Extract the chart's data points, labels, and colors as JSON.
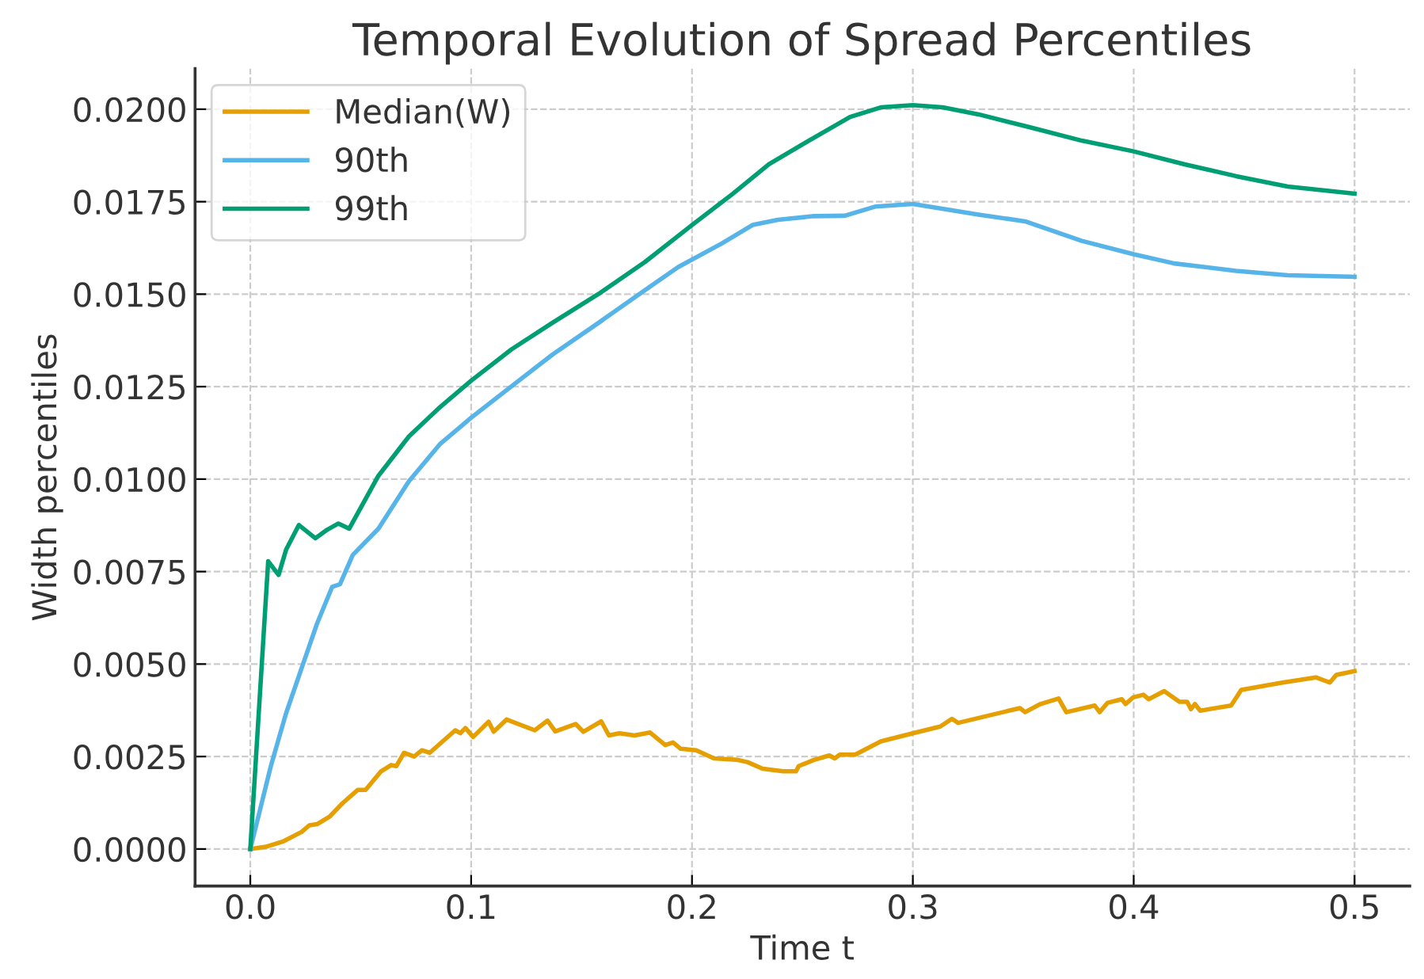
{
  "chart_data": {
    "type": "line",
    "title": "Temporal Evolution of Spread Percentiles",
    "xlabel": "Time t",
    "ylabel": "Width percentiles",
    "xlim": [
      -0.025,
      0.525
    ],
    "xticks": [
      {
        "value": 0,
        "label": "0.0"
      },
      0.1,
      0.2,
      0.3,
      0.4,
      0.5
    ],
    "ylim": [
      -0.001,
      0.0211
    ],
    "yticks": [
      {
        "value": 0,
        "label": "0.0000"
      },
      {
        "value": 0.0025,
        "label": "0.0025"
      },
      {
        "value": 0.005,
        "label": "0.0050"
      },
      {
        "value": 0.0075,
        "label": "0.0075"
      },
      {
        "value": 0.01,
        "label": "0.0100"
      },
      {
        "value": 0.0125,
        "label": "0.0125"
      },
      {
        "value": 0.015,
        "label": "0.0150"
      },
      {
        "value": 0.0175,
        "label": "0.0175"
      },
      {
        "value": 0.02,
        "label": "0.0200"
      }
    ],
    "grid": true,
    "legend": "top left",
    "marker": "none",
    "line_style": "solid",
    "series": [
      {
        "name": "Median(W)",
        "color": "#e69f00",
        "x": [
          0,
          0.007,
          0.0151,
          0.0232,
          0.0267,
          0.0302,
          0.036,
          0.0418,
          0.0487,
          0.0522,
          0.0592,
          0.0638,
          0.0661,
          0.0696,
          0.0742,
          0.0777,
          0.0812,
          0.0928,
          0.0951,
          0.0974,
          0.1009,
          0.1079,
          0.1102,
          0.116,
          0.1288,
          0.1346,
          0.1381,
          0.1473,
          0.1508,
          0.1589,
          0.1624,
          0.1671,
          0.174,
          0.181,
          0.1879,
          0.1914,
          0.1949,
          0.2019,
          0.21,
          0.2204,
          0.2251,
          0.232,
          0.2413,
          0.2471,
          0.2483,
          0.2552,
          0.2622,
          0.2646,
          0.2669,
          0.2739,
          0.2855,
          0.3,
          0.3124,
          0.3177,
          0.3205,
          0.3485,
          0.3508,
          0.3578,
          0.366,
          0.3695,
          0.3823,
          0.3846,
          0.3881,
          0.3946,
          0.3963,
          0.3998,
          0.4044,
          0.4068,
          0.4138,
          0.4207,
          0.4242,
          0.4259,
          0.4277,
          0.4301,
          0.4441,
          0.4487,
          0.4674,
          0.4825,
          0.4888,
          0.4918,
          0.5
        ],
        "values": [
          0,
          6e-05,
          0.00021,
          0.00046,
          0.00064,
          0.00067,
          0.00088,
          0.00124,
          0.0016,
          0.0016,
          0.0021,
          0.00227,
          0.00224,
          0.0026,
          0.0025,
          0.00267,
          0.0026,
          0.00321,
          0.00313,
          0.00327,
          0.00303,
          0.00344,
          0.00317,
          0.0035,
          0.00321,
          0.00347,
          0.00318,
          0.00338,
          0.00317,
          0.00345,
          0.00307,
          0.00313,
          0.00307,
          0.00315,
          0.00281,
          0.00288,
          0.00271,
          0.00267,
          0.00245,
          0.00241,
          0.00235,
          0.00217,
          0.0021,
          0.0021,
          0.00224,
          0.00241,
          0.00253,
          0.00245,
          0.00255,
          0.00255,
          0.00291,
          0.00313,
          0.00331,
          0.00352,
          0.00341,
          0.00381,
          0.0037,
          0.00392,
          0.00407,
          0.0037,
          0.00388,
          0.0037,
          0.00395,
          0.00405,
          0.00392,
          0.0041,
          0.00417,
          0.00405,
          0.00427,
          0.00398,
          0.00398,
          0.00378,
          0.00392,
          0.00374,
          0.00388,
          0.0043,
          0.0045,
          0.00464,
          0.0045,
          0.00471,
          0.00481
        ]
      },
      {
        "name": "90th",
        "color": "#56b4e9",
        "x": [
          0,
          0.0093,
          0.0162,
          0.0244,
          0.0302,
          0.0371,
          0.0406,
          0.0464,
          0.058,
          0.0719,
          0.0858,
          0.1,
          0.1183,
          0.1369,
          0.1578,
          0.1763,
          0.1937,
          0.2135,
          0.2274,
          0.2389,
          0.2552,
          0.2692,
          0.2832,
          0.3,
          0.3298,
          0.3508,
          0.3765,
          0.4,
          0.4184,
          0.4464,
          0.4697,
          0.5
        ],
        "values": [
          0,
          0.00224,
          0.00367,
          0.00509,
          0.00609,
          0.00709,
          0.00716,
          0.00795,
          0.00866,
          0.00995,
          0.01094,
          0.01166,
          0.01251,
          0.01337,
          0.01423,
          0.01501,
          0.01573,
          0.01637,
          0.01687,
          0.01701,
          0.01711,
          0.01712,
          0.01737,
          0.01744,
          0.01715,
          0.01697,
          0.01644,
          0.01608,
          0.01583,
          0.01563,
          0.01551,
          0.01547
        ]
      },
      {
        "name": "99th",
        "color": "#009e73",
        "x": [
          0,
          0.0081,
          0.0128,
          0.0162,
          0.022,
          0.0295,
          0.0348,
          0.0399,
          0.0448,
          0.058,
          0.0719,
          0.0858,
          0.1,
          0.1183,
          0.1369,
          0.1578,
          0.1787,
          0.2,
          0.2186,
          0.2348,
          0.2529,
          0.2716,
          0.2855,
          0.3,
          0.3135,
          0.3298,
          0.3531,
          0.3765,
          0.4,
          0.4231,
          0.4464,
          0.4697,
          0.5
        ],
        "values": [
          0,
          0.00778,
          0.00741,
          0.00809,
          0.00876,
          0.0084,
          0.00863,
          0.0088,
          0.00866,
          0.01009,
          0.01116,
          0.01194,
          0.01266,
          0.01351,
          0.01423,
          0.01501,
          0.01587,
          0.01687,
          0.01772,
          0.01851,
          0.01915,
          0.01979,
          0.02005,
          0.02011,
          0.02005,
          0.01986,
          0.01951,
          0.01915,
          0.01886,
          0.01851,
          0.01819,
          0.01791,
          0.01772
        ]
      }
    ]
  }
}
